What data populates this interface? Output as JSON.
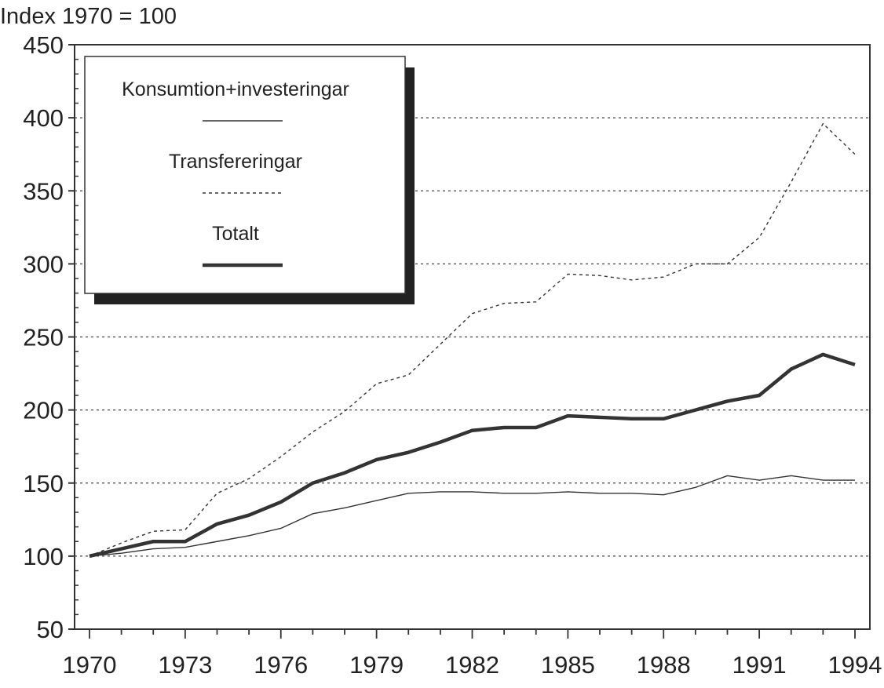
{
  "chart_data": {
    "type": "line",
    "title": "Index 1970 = 100",
    "xlabel": "",
    "ylabel": "Index 1970 = 100",
    "ylim": [
      50,
      450
    ],
    "xlim": [
      1970,
      1994
    ],
    "yticks": [
      50,
      100,
      150,
      200,
      250,
      300,
      350,
      400,
      450
    ],
    "xticks": [
      1970,
      1973,
      1976,
      1979,
      1982,
      1985,
      1988,
      1991,
      1994
    ],
    "grid": "horizontal dotted",
    "legend_position": "top-left",
    "x": [
      1970,
      1971,
      1972,
      1973,
      1974,
      1975,
      1976,
      1977,
      1978,
      1979,
      1980,
      1981,
      1982,
      1983,
      1984,
      1985,
      1986,
      1987,
      1988,
      1989,
      1990,
      1991,
      1992,
      1993,
      1994
    ],
    "series": [
      {
        "name": "Konsumtion+investeringar",
        "style": "thin",
        "values": [
          100,
          102,
          105,
          106,
          110,
          114,
          119,
          129,
          133,
          138,
          143,
          144,
          144,
          143,
          143,
          144,
          143,
          143,
          142,
          147,
          155,
          152,
          155,
          152,
          152
        ]
      },
      {
        "name": "Transfereringar",
        "style": "dashed",
        "values": [
          100,
          109,
          117,
          118,
          143,
          153,
          168,
          185,
          199,
          218,
          224,
          245,
          266,
          273,
          274,
          293,
          292,
          289,
          291,
          300,
          300,
          318,
          356,
          396,
          375
        ]
      },
      {
        "name": "Totalt",
        "style": "thick",
        "values": [
          100,
          105,
          110,
          110,
          122,
          128,
          137,
          150,
          157,
          166,
          171,
          178,
          186,
          188,
          188,
          196,
          195,
          194,
          194,
          200,
          206,
          210,
          228,
          238,
          231
        ]
      }
    ]
  }
}
